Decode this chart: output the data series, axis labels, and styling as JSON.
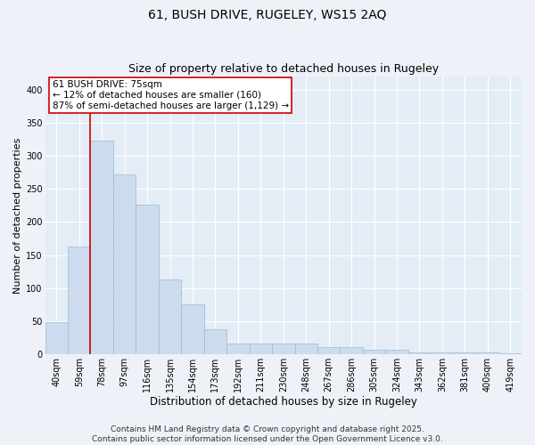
{
  "title": "61, BUSH DRIVE, RUGELEY, WS15 2AQ",
  "subtitle": "Size of property relative to detached houses in Rugeley",
  "xlabel": "Distribution of detached houses by size in Rugeley",
  "ylabel": "Number of detached properties",
  "categories": [
    "40sqm",
    "59sqm",
    "78sqm",
    "97sqm",
    "116sqm",
    "135sqm",
    "154sqm",
    "173sqm",
    "192sqm",
    "211sqm",
    "230sqm",
    "248sqm",
    "267sqm",
    "286sqm",
    "305sqm",
    "324sqm",
    "343sqm",
    "362sqm",
    "381sqm",
    "400sqm",
    "419sqm"
  ],
  "values": [
    48,
    163,
    323,
    272,
    226,
    113,
    76,
    38,
    17,
    17,
    17,
    17,
    11,
    11,
    7,
    7,
    3,
    3,
    3,
    3,
    2
  ],
  "bar_color": "#ccdcee",
  "bar_edge_color": "#9bbad4",
  "vline_x_index": 2,
  "vline_color": "#cc0000",
  "annotation_text": "61 BUSH DRIVE: 75sqm\n← 12% of detached houses are smaller (160)\n87% of semi-detached houses are larger (1,129) →",
  "annotation_box_color": "#ffffff",
  "annotation_box_edge_color": "#cc0000",
  "ylim": [
    0,
    420
  ],
  "yticks": [
    0,
    50,
    100,
    150,
    200,
    250,
    300,
    350,
    400
  ],
  "background_color": "#eef2f8",
  "plot_bg_color": "#e4ecf6",
  "grid_color": "#ffffff",
  "footer_text": "Contains HM Land Registry data © Crown copyright and database right 2025.\nContains public sector information licensed under the Open Government Licence v3.0.",
  "title_fontsize": 10,
  "subtitle_fontsize": 9,
  "xlabel_fontsize": 8.5,
  "ylabel_fontsize": 8,
  "tick_fontsize": 7,
  "annotation_fontsize": 7.5,
  "footer_fontsize": 6.5
}
